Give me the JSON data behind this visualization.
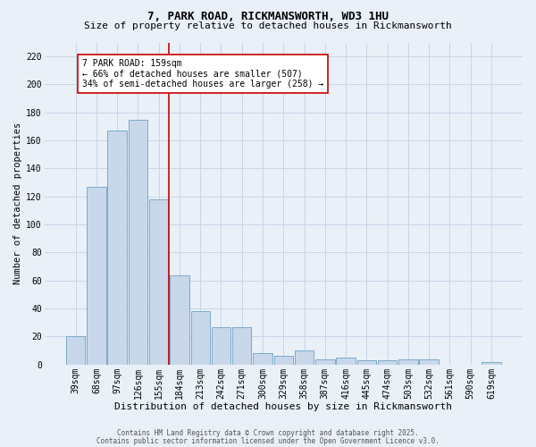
{
  "title1": "7, PARK ROAD, RICKMANSWORTH, WD3 1HU",
  "title2": "Size of property relative to detached houses in Rickmansworth",
  "xlabel": "Distribution of detached houses by size in Rickmansworth",
  "ylabel": "Number of detached properties",
  "bar_labels": [
    "39sqm",
    "68sqm",
    "97sqm",
    "126sqm",
    "155sqm",
    "184sqm",
    "213sqm",
    "242sqm",
    "271sqm",
    "300sqm",
    "329sqm",
    "358sqm",
    "387sqm",
    "416sqm",
    "445sqm",
    "474sqm",
    "503sqm",
    "532sqm",
    "561sqm",
    "590sqm",
    "619sqm"
  ],
  "bar_values": [
    20,
    127,
    167,
    175,
    118,
    64,
    38,
    27,
    27,
    8,
    6,
    10,
    4,
    5,
    3,
    3,
    4,
    4,
    0,
    0,
    2
  ],
  "bar_color": "#c8d8ea",
  "bar_edge_color": "#7aaac8",
  "vline_x_index": 4.5,
  "vline_color": "#cc0000",
  "annotation_text": "7 PARK ROAD: 159sqm\n← 66% of detached houses are smaller (507)\n34% of semi-detached houses are larger (258) →",
  "annotation_box_color": "#ffffff",
  "annotation_box_edge": "#cc0000",
  "ylim": [
    0,
    230
  ],
  "yticks": [
    0,
    20,
    40,
    60,
    80,
    100,
    120,
    140,
    160,
    180,
    200,
    220
  ],
  "grid_color": "#c8d4e8",
  "bg_color": "#eaf0f8",
  "footer1": "Contains HM Land Registry data © Crown copyright and database right 2025.",
  "footer2": "Contains public sector information licensed under the Open Government Licence v3.0.",
  "title1_fontsize": 9,
  "title2_fontsize": 8,
  "xlabel_fontsize": 8,
  "ylabel_fontsize": 7.5,
  "tick_fontsize": 7,
  "annot_fontsize": 7,
  "footer_fontsize": 5.5
}
